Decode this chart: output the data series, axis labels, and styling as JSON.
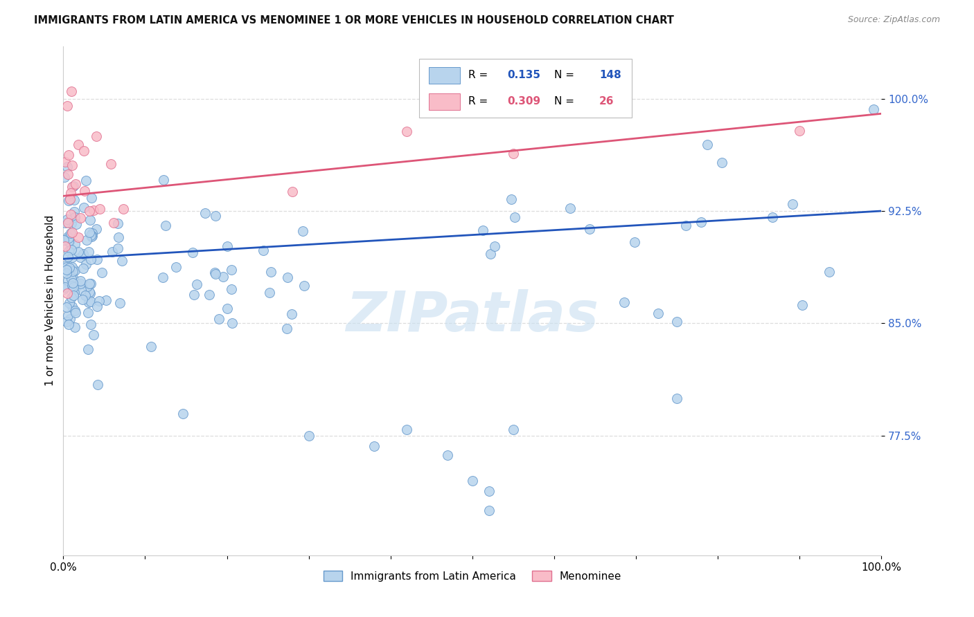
{
  "title": "IMMIGRANTS FROM LATIN AMERICA VS MENOMINEE 1 OR MORE VEHICLES IN HOUSEHOLD CORRELATION CHART",
  "source": "Source: ZipAtlas.com",
  "ylabel": "1 or more Vehicles in Household",
  "xlim": [
    0.0,
    1.0
  ],
  "ylim": [
    0.695,
    1.035
  ],
  "yticks": [
    0.775,
    0.85,
    0.925,
    1.0
  ],
  "ytick_labels": [
    "77.5%",
    "85.0%",
    "92.5%",
    "100.0%"
  ],
  "blue_R": "0.135",
  "blue_N": "148",
  "pink_R": "0.309",
  "pink_N": "26",
  "blue_scatter_color": "#b8d4ed",
  "blue_edge_color": "#6699cc",
  "pink_scatter_color": "#f9bcc8",
  "pink_edge_color": "#e07090",
  "blue_line_color": "#2255bb",
  "pink_line_color": "#dd5577",
  "axis_tick_color": "#3366cc",
  "legend_label_blue": "Immigrants from Latin America",
  "legend_label_pink": "Menominee",
  "watermark": "ZIPatlas",
  "watermark_color": "#c8dff0",
  "grid_color": "#dddddd",
  "title_color": "#111111",
  "source_color": "#888888"
}
